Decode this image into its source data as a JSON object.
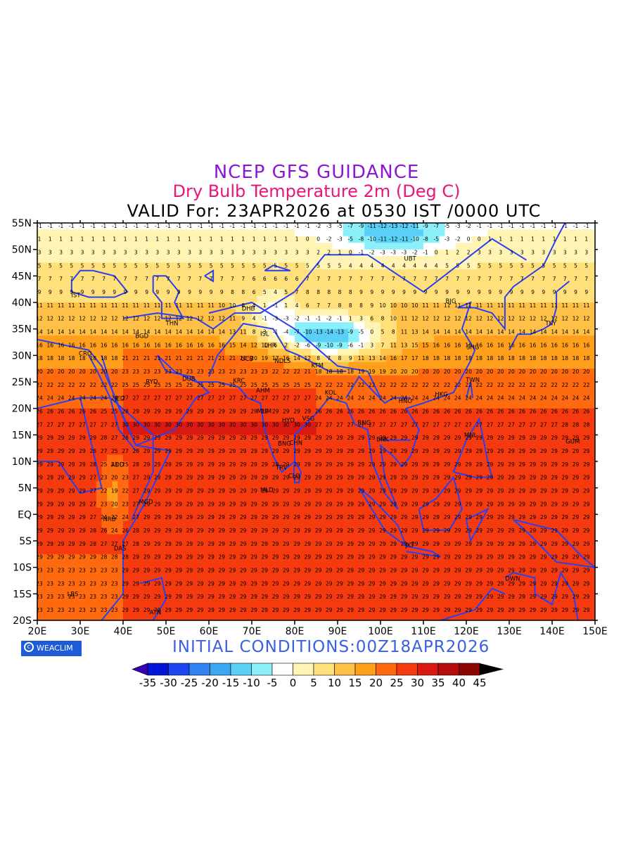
{
  "header": {
    "title": "NCEP GFS GUIDANCE",
    "subtitle": "Dry Bulb Temperature 2m (Deg C)",
    "valid": "VALID For: 23APR2026 at 0530 IST /0000 UTC"
  },
  "footer": {
    "initial_conditions": "INITIAL CONDITIONS:00Z18APR2026",
    "logo_text": "WEACLIM"
  },
  "axes": {
    "lon_labels": [
      "20E",
      "30E",
      "40E",
      "50E",
      "60E",
      "70E",
      "80E",
      "90E",
      "100E",
      "110E",
      "120E",
      "130E",
      "140E",
      "150E"
    ],
    "lat_labels": [
      "55N",
      "50N",
      "45N",
      "40N",
      "35N",
      "30N",
      "25N",
      "20N",
      "15N",
      "10N",
      "5N",
      "EQ",
      "5S",
      "10S",
      "15S",
      "20S"
    ]
  },
  "colorbar": {
    "labels": [
      "-35",
      "-30",
      "-25",
      "-20",
      "-15",
      "-10",
      "-5",
      "0",
      "5",
      "10",
      "15",
      "20",
      "25",
      "30",
      "35",
      "40",
      "45"
    ],
    "colors": [
      "#3a00b0",
      "#0015d6",
      "#1d46f0",
      "#2f84f2",
      "#3ca8f2",
      "#5ad0f6",
      "#8cf0fa",
      "#ffffff",
      "#fff4b4",
      "#ffe07a",
      "#ffc048",
      "#ff9f1c",
      "#ff6a10",
      "#f53a10",
      "#d81a12",
      "#b50c0c",
      "#8d0404"
    ]
  },
  "cities": [
    {
      "code": "UBT",
      "lon": 106.9,
      "lat": 47.9
    },
    {
      "code": "IST",
      "lon": 29.0,
      "lat": 41.0
    },
    {
      "code": "BJG",
      "lon": 116.4,
      "lat": 39.9
    },
    {
      "code": "DHB",
      "lon": 69.2,
      "lat": 38.5
    },
    {
      "code": "THN",
      "lon": 51.4,
      "lat": 35.7
    },
    {
      "code": "TKY",
      "lon": 139.7,
      "lat": 35.7
    },
    {
      "code": "ISL",
      "lon": 73.0,
      "lat": 33.7
    },
    {
      "code": "BGD",
      "lon": 44.4,
      "lat": 33.3
    },
    {
      "code": "LHR",
      "lon": 74.3,
      "lat": 31.5
    },
    {
      "code": "SHG",
      "lon": 121.5,
      "lat": 31.2
    },
    {
      "code": "CRO",
      "lon": 31.2,
      "lat": 30.0
    },
    {
      "code": "UCB",
      "lon": 68.9,
      "lat": 29.0
    },
    {
      "code": "NDLS",
      "lon": 77.2,
      "lat": 28.6
    },
    {
      "code": "KTM",
      "lon": 85.3,
      "lat": 27.7
    },
    {
      "code": "DUB",
      "lon": 55.3,
      "lat": 25.2
    },
    {
      "code": "RYD",
      "lon": 46.7,
      "lat": 24.7
    },
    {
      "code": "KRC",
      "lon": 67.0,
      "lat": 24.9
    },
    {
      "code": "TWN",
      "lon": 121.5,
      "lat": 25.0
    },
    {
      "code": "AHM",
      "lon": 72.6,
      "lat": 23.0
    },
    {
      "code": "KOL",
      "lon": 88.4,
      "lat": 22.6
    },
    {
      "code": "HNO",
      "lon": 105.8,
      "lat": 21.0
    },
    {
      "code": "HKG",
      "lon": 114.2,
      "lat": 22.3
    },
    {
      "code": "MUM",
      "lon": 72.9,
      "lat": 19.1
    },
    {
      "code": "JED",
      "lon": 39.2,
      "lat": 21.5
    },
    {
      "code": "HYD",
      "lon": 78.5,
      "lat": 17.4
    },
    {
      "code": "VSG",
      "lon": 83.2,
      "lat": 17.7
    },
    {
      "code": "RNG",
      "lon": 96.2,
      "lat": 16.9
    },
    {
      "code": "MNL",
      "lon": 121.0,
      "lat": 14.6
    },
    {
      "code": "BNK",
      "lon": 100.5,
      "lat": 13.8
    },
    {
      "code": "BNG",
      "lon": 77.6,
      "lat": 13.0
    },
    {
      "code": "CHN",
      "lon": 80.3,
      "lat": 13.1
    },
    {
      "code": "ADD",
      "lon": 38.7,
      "lat": 9.0
    },
    {
      "code": "TRV",
      "lon": 76.9,
      "lat": 8.5
    },
    {
      "code": "CLO",
      "lon": 79.9,
      "lat": 6.9
    },
    {
      "code": "MGD",
      "lon": 45.3,
      "lat": 2.0
    },
    {
      "code": "MLD",
      "lon": 73.5,
      "lat": 4.2
    },
    {
      "code": "NRB",
      "lon": 36.8,
      "lat": -1.3
    },
    {
      "code": "JKT",
      "lon": 106.8,
      "lat": -6.2
    },
    {
      "code": "DAS",
      "lon": 39.3,
      "lat": -6.8
    },
    {
      "code": "DWN",
      "lon": 130.8,
      "lat": -12.5
    },
    {
      "code": "LBS",
      "lon": 28.3,
      "lat": -15.4
    },
    {
      "code": "ATN",
      "lon": 47.5,
      "lat": -18.9
    },
    {
      "code": "GUM",
      "lon": 144.8,
      "lat": 13.4
    }
  ]
}
